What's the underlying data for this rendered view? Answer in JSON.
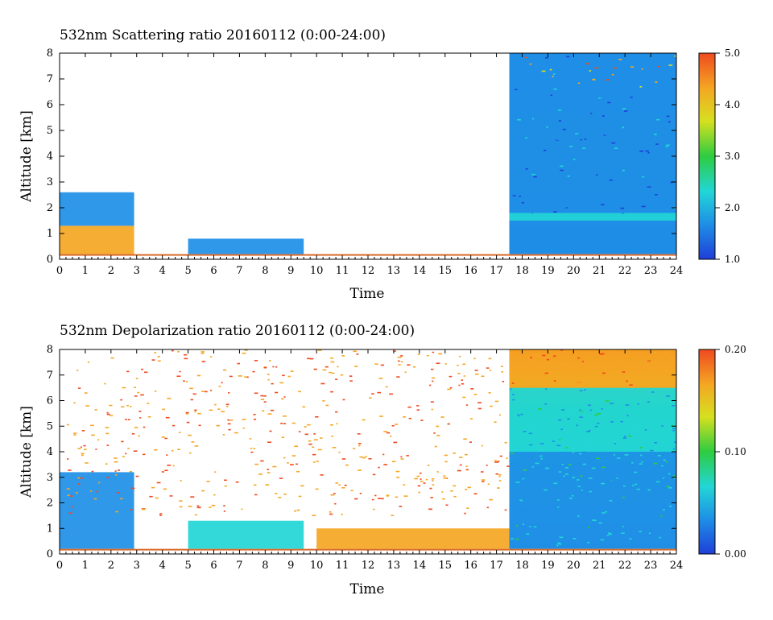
{
  "chart_data": [
    {
      "type": "heatmap",
      "title": "532nm Scattering ratio  20160112 (0:00-24:00)",
      "xlabel": "Time",
      "ylabel": "Altitude [km]",
      "xlim": [
        0,
        24
      ],
      "ylim": [
        0,
        8
      ],
      "x_ticks": [
        "0",
        "1",
        "2",
        "3",
        "4",
        "5",
        "6",
        "7",
        "8",
        "9",
        "10",
        "11",
        "12",
        "13",
        "14",
        "15",
        "16",
        "17",
        "18",
        "19",
        "20",
        "21",
        "22",
        "23",
        "24"
      ],
      "y_ticks": [
        "0",
        "1",
        "2",
        "3",
        "4",
        "5",
        "6",
        "7",
        "8"
      ],
      "colorbar": {
        "min": 1.0,
        "max": 5.0,
        "ticks": [
          "1.0",
          "2.0",
          "3.0",
          "4.0",
          "5.0"
        ]
      },
      "colormap": [
        "#1f3fd8",
        "#1e8fe6",
        "#22d6d6",
        "#2ecc40",
        "#d6e01f",
        "#f5a623",
        "#ef4a1f"
      ],
      "description_regions": [
        {
          "x": [
            0,
            2.9
          ],
          "alt": [
            0.2,
            1.3
          ],
          "value": 4.2
        },
        {
          "x": [
            0,
            2.9
          ],
          "alt": [
            1.3,
            2.6
          ],
          "value": 1.7
        },
        {
          "x": [
            5,
            9.5
          ],
          "alt": [
            0.2,
            0.8
          ],
          "value": 1.4
        },
        {
          "x": [
            17.5,
            24
          ],
          "alt": [
            0.2,
            1.5
          ],
          "value": 1.5
        },
        {
          "x": [
            17.5,
            24
          ],
          "alt": [
            1.5,
            1.8
          ],
          "value": 2.6
        },
        {
          "x": [
            17.5,
            24
          ],
          "alt": [
            1.8,
            8
          ],
          "value": 1.4
        }
      ]
    },
    {
      "type": "heatmap",
      "title": "532nm Depolarization ratio  20160112 (0:00-24:00)",
      "xlabel": "Time",
      "ylabel": "Altitude [km]",
      "xlim": [
        0,
        24
      ],
      "ylim": [
        0,
        8
      ],
      "x_ticks": [
        "0",
        "1",
        "2",
        "3",
        "4",
        "5",
        "6",
        "7",
        "8",
        "9",
        "10",
        "11",
        "12",
        "13",
        "14",
        "15",
        "16",
        "17",
        "18",
        "19",
        "20",
        "21",
        "22",
        "23",
        "24"
      ],
      "y_ticks": [
        "0",
        "1",
        "2",
        "3",
        "4",
        "5",
        "6",
        "7",
        "8"
      ],
      "colorbar": {
        "min": 0.0,
        "max": 0.2,
        "ticks": [
          "0.00",
          "0.10",
          "0.20"
        ]
      },
      "colormap": [
        "#1f3fd8",
        "#1e8fe6",
        "#22d6d6",
        "#2ecc40",
        "#d6e01f",
        "#f5a623",
        "#ef4a1f"
      ],
      "description_regions": [
        {
          "x": [
            0,
            2.9
          ],
          "alt": [
            0.2,
            3.2
          ],
          "value": 0.03
        },
        {
          "x": [
            5,
            9.5
          ],
          "alt": [
            0.2,
            1.3
          ],
          "value": 0.05
        },
        {
          "x": [
            10,
            17.5
          ],
          "alt": [
            0.2,
            1.0
          ],
          "value": 0.17
        },
        {
          "x": [
            17.5,
            24
          ],
          "alt": [
            0.2,
            4.0
          ],
          "value": 0.035
        },
        {
          "x": [
            17.5,
            24
          ],
          "alt": [
            4.0,
            6.5
          ],
          "value": 0.08
        },
        {
          "x": [
            17.5,
            24
          ],
          "alt": [
            6.5,
            8
          ],
          "value": 0.18
        }
      ]
    }
  ]
}
